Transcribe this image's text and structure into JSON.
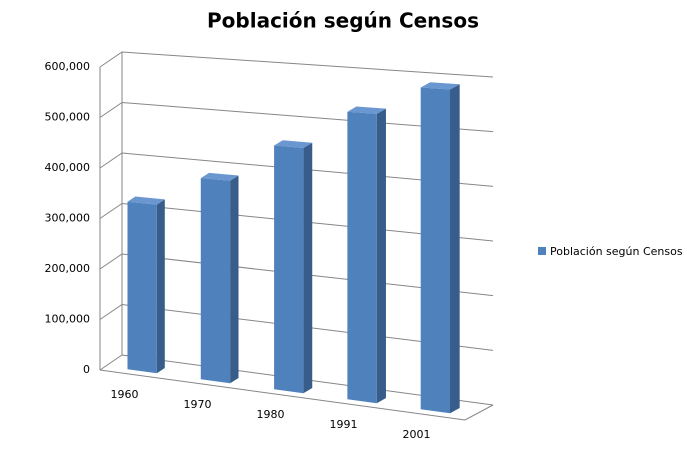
{
  "chart_data": {
    "type": "bar3d",
    "title": "Población según Censos",
    "categories": [
      "1960",
      "1970",
      "1980",
      "1991",
      "2001"
    ],
    "series": [
      {
        "name": "Población según Censos",
        "color": "#4f81bd",
        "values": [
          330000,
          390000,
          465000,
          540000,
          595000
        ]
      }
    ],
    "ylim": [
      0,
      600000
    ],
    "yticks": [
      0,
      {
        "value": 100000,
        "label": "100,000"
      },
      {
        "value": 200000,
        "label": "200,000"
      },
      {
        "value": 300000,
        "label": "300,000"
      },
      {
        "value": 400000,
        "label": "400,000"
      },
      {
        "value": 500000,
        "label": "500,000"
      },
      {
        "value": 600000,
        "label": "600,000"
      }
    ],
    "grid": true,
    "legend": "right"
  }
}
